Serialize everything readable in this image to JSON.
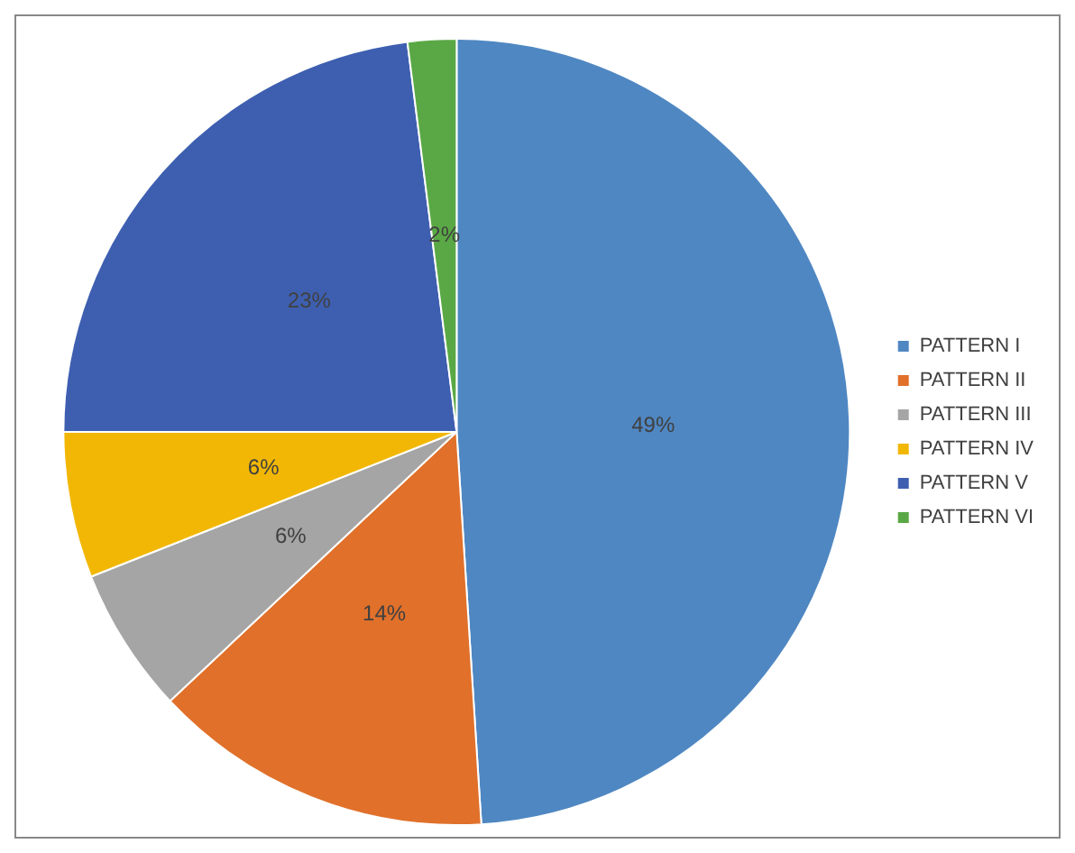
{
  "chart_data": {
    "type": "pie",
    "categories": [
      "PATTERN I",
      "PATTERN II",
      "PATTERN III",
      "PATTERN IV",
      "PATTERN V",
      "PATTERN VI"
    ],
    "values": [
      49,
      14,
      6,
      6,
      23,
      2
    ],
    "colors": [
      "#4f87c2",
      "#e0702a",
      "#a5a5a5",
      "#f2b705",
      "#3e5fb0",
      "#5aa845"
    ],
    "value_labels": [
      "49%",
      "14%",
      "6%",
      "6%",
      "23%",
      "2%"
    ],
    "legend": "right"
  }
}
